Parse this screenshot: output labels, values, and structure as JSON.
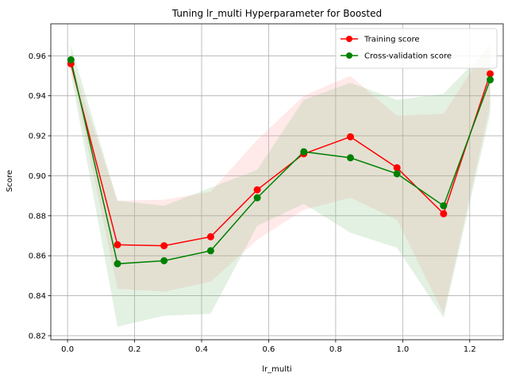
{
  "chart_data": {
    "type": "line",
    "title": "Tuning lr_multi Hyperparameter for Boosted",
    "xlabel": "lr_multi",
    "ylabel": "Score",
    "xlim": [
      -0.05,
      1.3
    ],
    "ylim": [
      0.818,
      0.976
    ],
    "xticks": [
      0.0,
      0.2,
      0.4,
      0.6,
      0.8,
      1.0,
      1.2
    ],
    "xtick_labels": [
      "0.0",
      "0.2",
      "0.4",
      "0.6",
      "0.8",
      "1.0",
      "1.2"
    ],
    "yticks": [
      0.82,
      0.84,
      0.86,
      0.88,
      0.9,
      0.92,
      0.94,
      0.96
    ],
    "ytick_labels": [
      "0.82",
      "0.84",
      "0.86",
      "0.88",
      "0.90",
      "0.92",
      "0.94",
      "0.96"
    ],
    "grid": true,
    "legend_position": "top-right",
    "x": [
      0.01,
      0.149,
      0.288,
      0.427,
      0.566,
      0.705,
      0.844,
      0.983,
      1.122,
      1.261
    ],
    "series": [
      {
        "name": "Training score",
        "color": "#ff0000",
        "band_color": "#ff9999",
        "values": [
          0.956,
          0.8655,
          0.865,
          0.8695,
          0.893,
          0.911,
          0.9195,
          0.904,
          0.881,
          0.951
        ],
        "lower": [
          0.954,
          0.8435,
          0.842,
          0.847,
          0.868,
          0.883,
          0.889,
          0.878,
          0.831,
          0.935
        ],
        "upper": [
          0.958,
          0.8875,
          0.888,
          0.892,
          0.918,
          0.94,
          0.95,
          0.93,
          0.931,
          0.967
        ]
      },
      {
        "name": "Cross-validation score",
        "color": "#008000",
        "band_color": "#80c080",
        "values": [
          0.958,
          0.856,
          0.8575,
          0.8625,
          0.889,
          0.912,
          0.909,
          0.901,
          0.885,
          0.948
        ],
        "lower": [
          0.951,
          0.8245,
          0.83,
          0.831,
          0.875,
          0.886,
          0.8715,
          0.864,
          0.829,
          0.931
        ],
        "upper": [
          0.965,
          0.8875,
          0.885,
          0.894,
          0.903,
          0.938,
          0.9465,
          0.938,
          0.941,
          0.965
        ]
      }
    ]
  }
}
